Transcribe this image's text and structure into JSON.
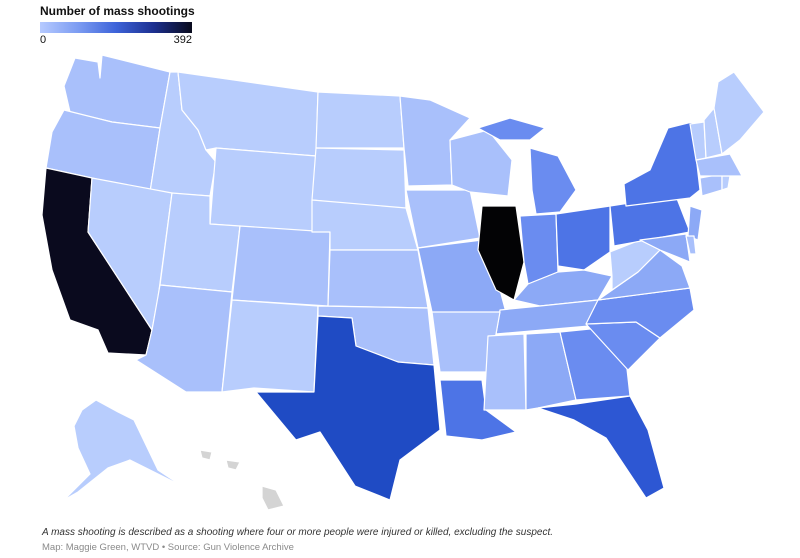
{
  "legend": {
    "title": "Number of mass shootings",
    "min_label": "0",
    "max_label": "392",
    "min_value": 0,
    "max_value": 392,
    "color_scale": [
      "#b6caff",
      "#7c9cf2",
      "#3d63d9",
      "#1c2f8f",
      "#090b1c"
    ]
  },
  "colors": {
    "california": "#0a0a1e",
    "illinois": "#030305",
    "texas": "#1f4bc4",
    "florida": "#2d57d3",
    "high": "#4d74e6",
    "mid_high": "#6a8cf0",
    "mid": "#8ca9f6",
    "low": "#a9c0fb",
    "lowest": "#b8cdfd",
    "territory": "#d4d4d4"
  },
  "footnote": "A mass shooting is described as a shooting where four or more people were injured or killed, excluding the suspect.",
  "credit": "Map: Maggie Green, WTVD • Source: Gun Violence Archive"
}
